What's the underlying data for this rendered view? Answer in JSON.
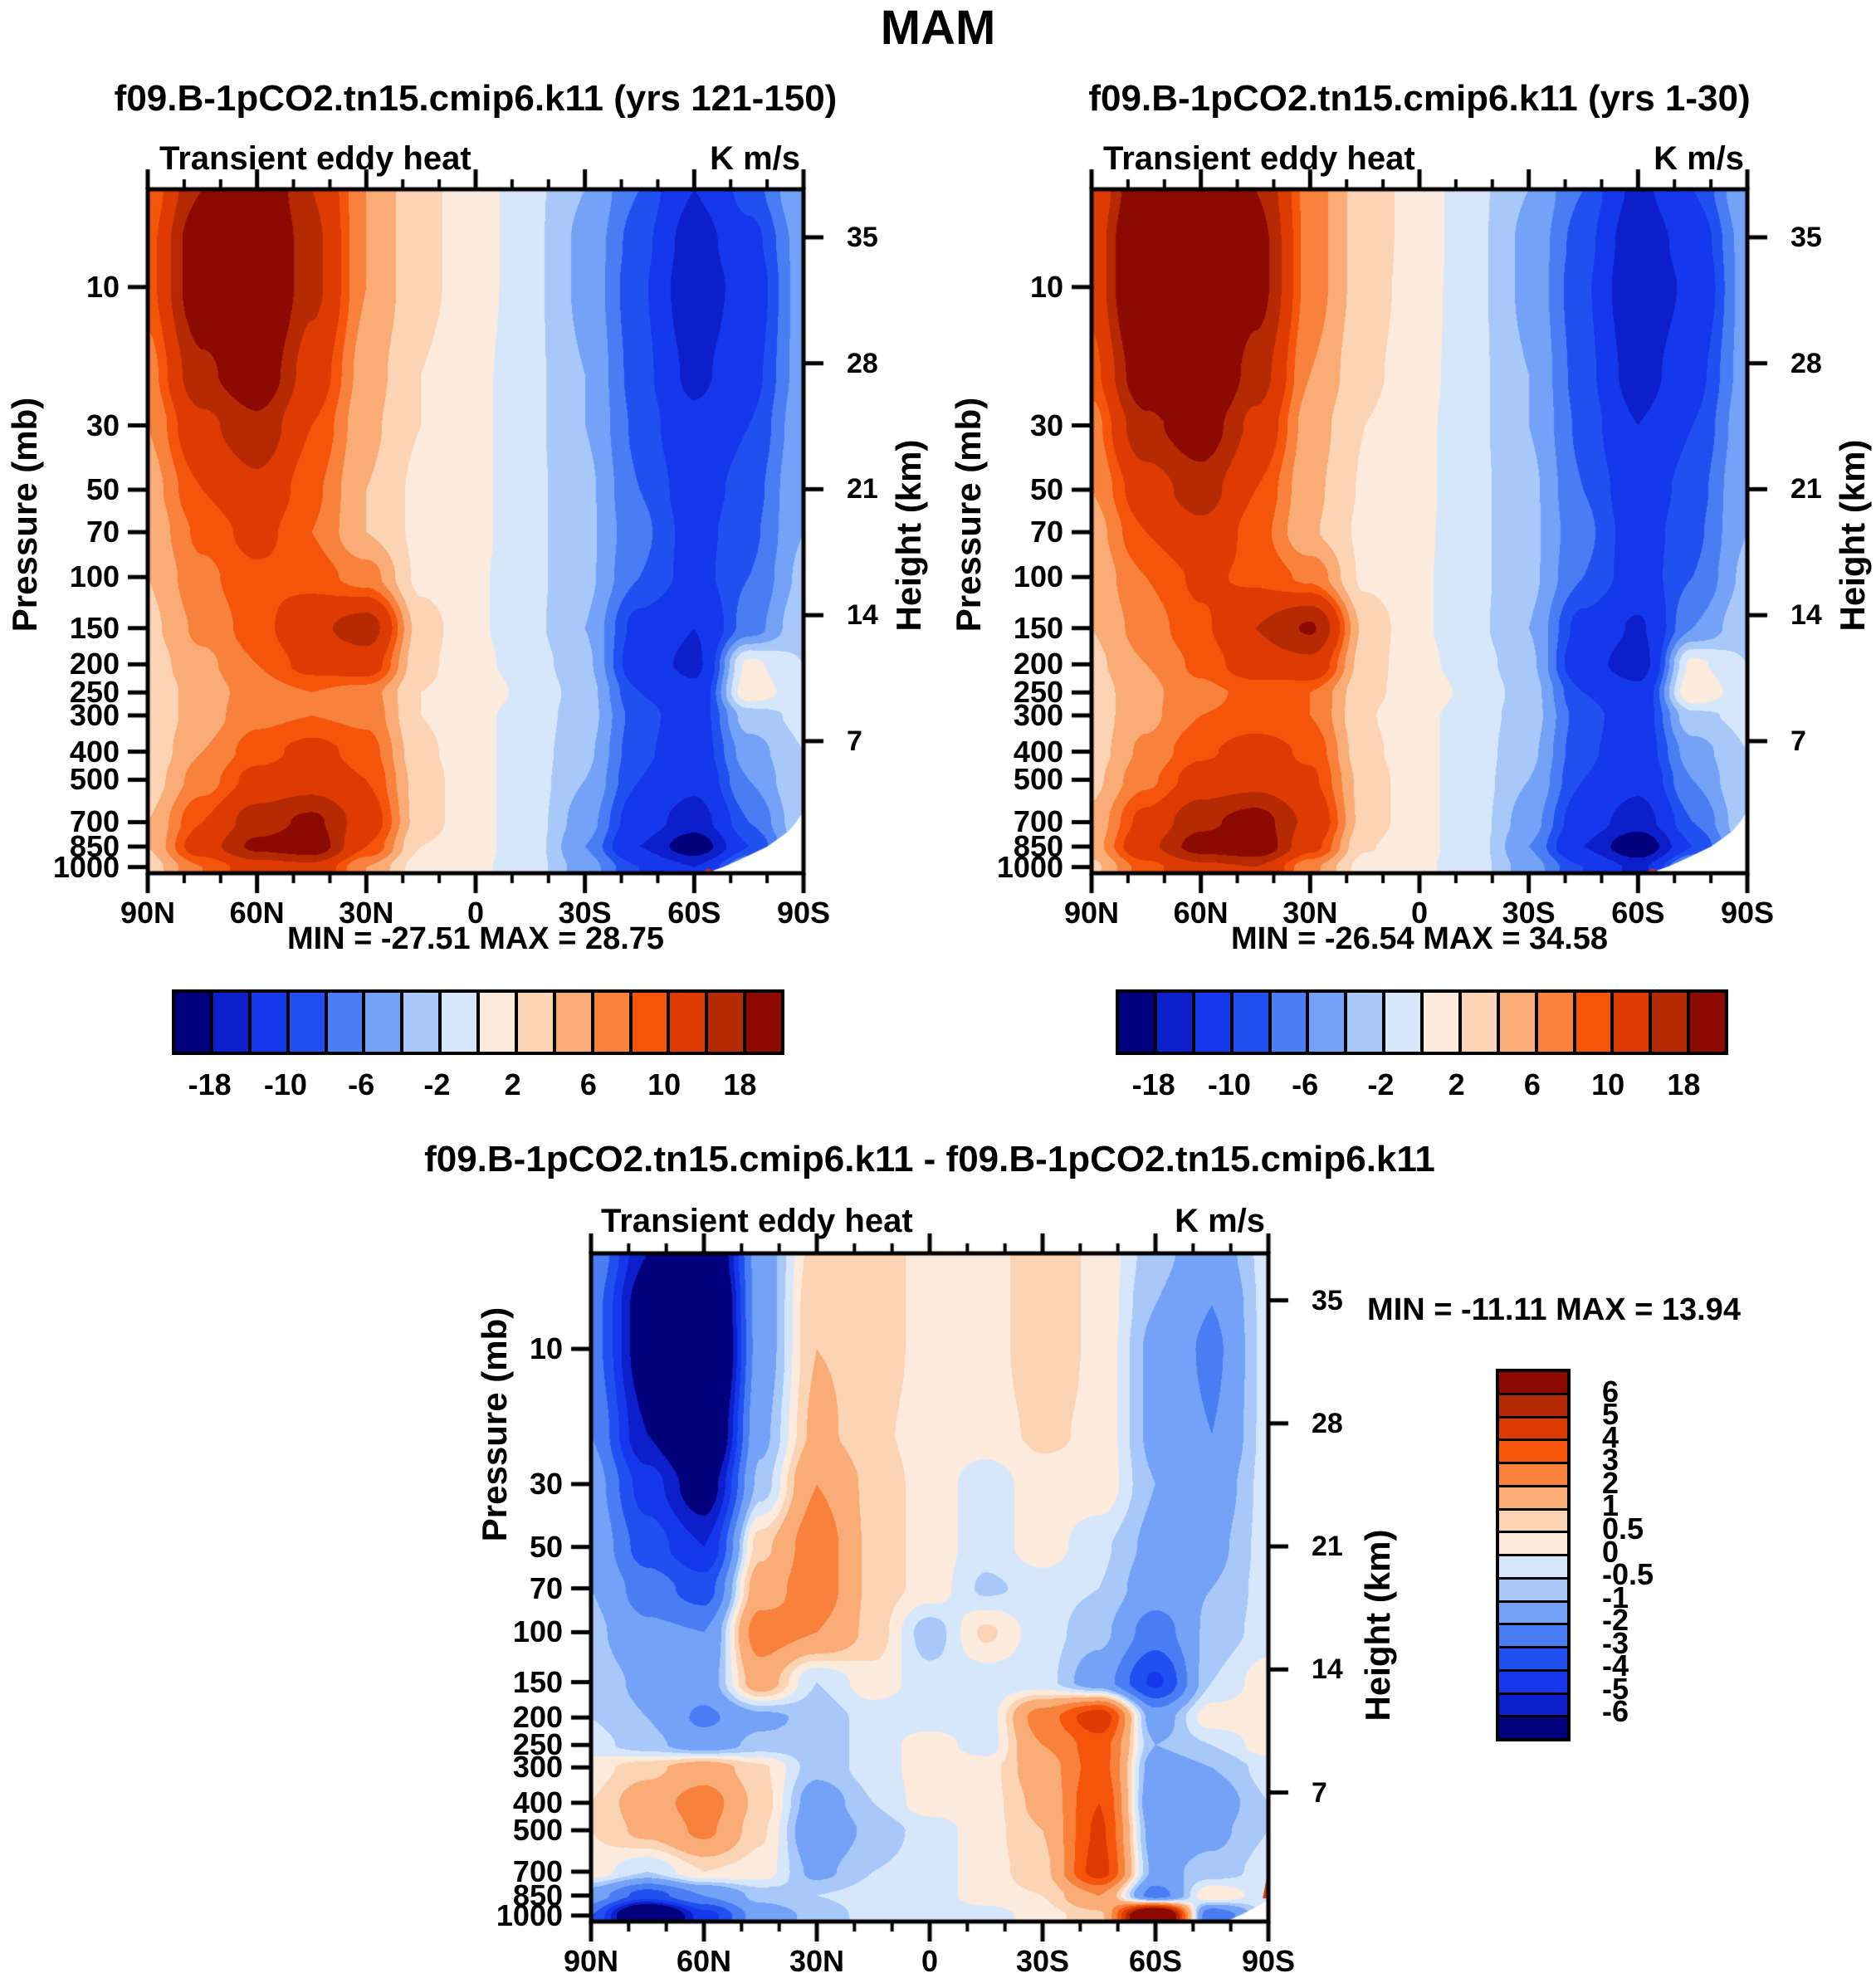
{
  "main_title": "MAM",
  "palette": [
    "#02007c",
    "#0d1fca",
    "#1638ed",
    "#2050f0",
    "#4a7df4",
    "#74a2f6",
    "#a8c8fa",
    "#d7e7fb",
    "#fceadd",
    "#fbd3b5",
    "#f9ac76",
    "#f8813c",
    "#f4550b",
    "#dd3b02",
    "#b52a03",
    "#8d0a03"
  ],
  "chart_data": [
    {
      "type": "heatmap",
      "title": "f09.B-1pCO2.tn15.cmip6.k11 (yrs 121-150)",
      "field": "Transient eddy heat",
      "units": "K m/s",
      "stats": "MIN = -27.51  MAX =  28.75",
      "ylabel_left": "Pressure (mb)",
      "ylabel_right": "Height (km)",
      "x_ticks": [
        {
          "lat": 90,
          "label": "90N"
        },
        {
          "lat": 60,
          "label": "60N"
        },
        {
          "lat": 30,
          "label": "30N"
        },
        {
          "lat": 0,
          "label": "0"
        },
        {
          "lat": -30,
          "label": "30S"
        },
        {
          "lat": -60,
          "label": "60S"
        },
        {
          "lat": -90,
          "label": "90S"
        }
      ],
      "pressure_ticks": [
        10,
        30,
        50,
        70,
        100,
        150,
        200,
        250,
        300,
        400,
        500,
        700,
        850,
        1000
      ],
      "height_ticks": [
        35,
        28,
        21,
        14,
        7
      ],
      "levels": [
        -18,
        -14,
        -10,
        -8,
        -6,
        -4,
        -2,
        0,
        2,
        4,
        6,
        8,
        10,
        14,
        18
      ],
      "colorbar_labels": [
        "-18",
        "-10",
        "-6",
        "-2",
        "2",
        "6",
        "10",
        "18"
      ],
      "lat": [
        90,
        75,
        60,
        45,
        30,
        15,
        0,
        -15,
        -30,
        -45,
        -60,
        -75,
        -90
      ],
      "pressure": [
        4.6,
        7,
        10,
        20,
        30,
        50,
        70,
        100,
        150,
        200,
        250,
        300,
        400,
        500,
        700,
        850,
        1000
      ],
      "values": [
        [
          8,
          18,
          24,
          14,
          6,
          2.5,
          1,
          -1.5,
          -4,
          -8,
          -14,
          -9,
          -4
        ],
        [
          9,
          22,
          27,
          15,
          6,
          2.5,
          1,
          -1.5,
          -4.5,
          -9,
          -16,
          -11,
          -5
        ],
        [
          9,
          22,
          27,
          15,
          6,
          2.5,
          1,
          -1.5,
          -4.5,
          -9.5,
          -17,
          -12,
          -5
        ],
        [
          7,
          17,
          22,
          12,
          5,
          2,
          0.5,
          -1.5,
          -4,
          -9,
          -15,
          -11,
          -5
        ],
        [
          6,
          13,
          17,
          10,
          4.5,
          2,
          0.5,
          -1.5,
          -4,
          -8.5,
          -13,
          -10,
          -4.5
        ],
        [
          5,
          10,
          13,
          8.5,
          4,
          1.5,
          0.5,
          -1.5,
          -3.5,
          -8,
          -11.5,
          -9,
          -4
        ],
        [
          4.5,
          8.5,
          11,
          8,
          4,
          1.5,
          0.5,
          -1.5,
          -3.5,
          -7.5,
          -11,
          -8.5,
          -4
        ],
        [
          4,
          7.5,
          9.5,
          9,
          7,
          1.5,
          0.3,
          -1.5,
          -3.5,
          -8,
          -11,
          -8,
          -3.5
        ],
        [
          3.5,
          6.5,
          9,
          13,
          16,
          3,
          0.3,
          -1.5,
          -4,
          -11,
          -14,
          -7,
          -2.5
        ],
        [
          3,
          5.5,
          8,
          11,
          12,
          2.5,
          0.5,
          -1,
          -3.5,
          -12,
          -15,
          0.5,
          -2
        ],
        [
          2.5,
          5,
          7,
          8,
          7,
          2,
          1,
          -0.5,
          -3,
          -10,
          -13,
          1.5,
          -1.5
        ],
        [
          2.5,
          5,
          7.5,
          8,
          7.5,
          2,
          0.5,
          -1,
          -3,
          -9,
          -12,
          -3,
          -1.5
        ],
        [
          2.5,
          6,
          9,
          11,
          9,
          2.5,
          0.5,
          -1,
          -3.5,
          -9.5,
          -12,
          -5,
          -2
        ],
        [
          3,
          7,
          11,
          12,
          10,
          3,
          0.5,
          -1,
          -4,
          -10,
          -13,
          -6,
          -2
        ],
        [
          4,
          10,
          16,
          19,
          12,
          3,
          0.5,
          -1,
          -5,
          -12,
          -16,
          -8,
          -2.5
        ],
        [
          4,
          12,
          19,
          21,
          10,
          2,
          0.5,
          -1,
          -6,
          -14,
          -21,
          -10,
          -3
        ],
        [
          3,
          8,
          12,
          13,
          6,
          1,
          0.3,
          -1,
          -5,
          -10,
          -14,
          -5,
          -2
        ]
      ],
      "masks": [
        {
          "color": "#ffffff",
          "pts": [
            [
              -62,
              1060
            ],
            [
              -68,
              1000
            ],
            [
              -72,
              950
            ],
            [
              -76,
              900
            ],
            [
              -80,
              850
            ],
            [
              -83,
              800
            ],
            [
              -86,
              750
            ],
            [
              -88,
              700
            ],
            [
              -90,
              640
            ],
            [
              -90,
              1060
            ]
          ]
        },
        {
          "color": "#dd3b02",
          "pts": [
            [
              -60.5,
              1060
            ],
            [
              -64,
              1012
            ],
            [
              -67,
              1060
            ]
          ]
        }
      ]
    },
    {
      "type": "heatmap",
      "title": "f09.B-1pCO2.tn15.cmip6.k11 (yrs 1-30)",
      "field": "Transient eddy heat",
      "units": "K m/s",
      "stats": "MIN = -26.54  MAX =  34.58",
      "ylabel_left": "Pressure (mb)",
      "ylabel_right": "Height (km)",
      "x_ticks": [
        {
          "lat": 90,
          "label": "90N"
        },
        {
          "lat": 60,
          "label": "60N"
        },
        {
          "lat": 30,
          "label": "30N"
        },
        {
          "lat": 0,
          "label": "0"
        },
        {
          "lat": -30,
          "label": "30S"
        },
        {
          "lat": -60,
          "label": "60S"
        },
        {
          "lat": -90,
          "label": "90S"
        }
      ],
      "pressure_ticks": [
        10,
        30,
        50,
        70,
        100,
        150,
        200,
        250,
        300,
        400,
        500,
        700,
        850,
        1000
      ],
      "height_ticks": [
        35,
        28,
        21,
        14,
        7
      ],
      "levels": [
        -18,
        -14,
        -10,
        -8,
        -6,
        -4,
        -2,
        0,
        2,
        4,
        6,
        8,
        10,
        14,
        18
      ],
      "colorbar_labels": [
        "-18",
        "-10",
        "-6",
        "-2",
        "2",
        "6",
        "10",
        "18"
      ],
      "lat": [
        90,
        75,
        60,
        45,
        30,
        15,
        0,
        -15,
        -30,
        -45,
        -60,
        -75,
        -90
      ],
      "pressure": [
        4.6,
        7,
        10,
        20,
        30,
        50,
        70,
        100,
        150,
        200,
        250,
        300,
        400,
        500,
        700,
        850,
        1000
      ],
      "values": [
        [
          10,
          24,
          29,
          18,
          7,
          3,
          1.2,
          -1.5,
          -4,
          -8,
          -15,
          -10,
          -4
        ],
        [
          11,
          28,
          33,
          20,
          7,
          3,
          1.2,
          -1.5,
          -4.5,
          -9,
          -17,
          -12,
          -5
        ],
        [
          11,
          28,
          33,
          20,
          7,
          3,
          1,
          -1.5,
          -4.5,
          -9.5,
          -18,
          -13,
          -5
        ],
        [
          9,
          22,
          27,
          16,
          6,
          2.5,
          0.8,
          -1.5,
          -4,
          -9,
          -16,
          -11,
          -5
        ],
        [
          7,
          17,
          21,
          13,
          5,
          2,
          0.5,
          -1.5,
          -4,
          -8.5,
          -14,
          -10,
          -4.5
        ],
        [
          6,
          12,
          16,
          10,
          4.5,
          1.8,
          0.5,
          -1.5,
          -3.5,
          -8,
          -12,
          -9,
          -4
        ],
        [
          5,
          10,
          13,
          9,
          4.2,
          1.6,
          0.4,
          -1.5,
          -3.5,
          -7.5,
          -11.5,
          -8.5,
          -4
        ],
        [
          4.5,
          8,
          10.5,
          9.5,
          7.5,
          1.6,
          0.3,
          -1.5,
          -3.5,
          -8,
          -11.5,
          -8,
          -3.5
        ],
        [
          4,
          7,
          9.5,
          14,
          18.5,
          3.5,
          0.3,
          -1.5,
          -4,
          -11,
          -14.5,
          -6,
          -2.5
        ],
        [
          3.5,
          6,
          8.5,
          12,
          13,
          3,
          0.5,
          -1,
          -3.5,
          -12.5,
          -16,
          0.5,
          -2
        ],
        [
          3,
          5.5,
          7.5,
          8.5,
          8,
          2.5,
          1,
          -0.5,
          -3,
          -10,
          -13,
          2,
          -1.5
        ],
        [
          3,
          5.5,
          8,
          8.5,
          8,
          2.2,
          0.5,
          -1,
          -3,
          -9,
          -12,
          -2.5,
          -1.5
        ],
        [
          3,
          6.5,
          9.5,
          11.5,
          9.5,
          2.6,
          0.5,
          -1,
          -3.5,
          -9.5,
          -12,
          -5,
          -2
        ],
        [
          3.5,
          7.5,
          11.5,
          12.5,
          10.5,
          3.2,
          0.5,
          -1,
          -4,
          -10,
          -13,
          -6,
          -2
        ],
        [
          4.5,
          11,
          17,
          20,
          13,
          3.2,
          0.5,
          -1,
          -5,
          -12,
          -16,
          -8,
          -2.5
        ],
        [
          5,
          13,
          20,
          22,
          11,
          2.2,
          0.5,
          -1,
          -6,
          -14,
          -22,
          -10,
          -3
        ],
        [
          3.5,
          9,
          13,
          14,
          6.5,
          1.2,
          0.3,
          -1,
          -5,
          -10,
          -15,
          -4,
          -2
        ]
      ],
      "masks": [
        {
          "color": "#ffffff",
          "pts": [
            [
              -62,
              1060
            ],
            [
              -68,
              1000
            ],
            [
              -72,
              950
            ],
            [
              -76,
              900
            ],
            [
              -80,
              850
            ],
            [
              -83,
              800
            ],
            [
              -86,
              750
            ],
            [
              -88,
              700
            ],
            [
              -90,
              640
            ],
            [
              -90,
              1060
            ]
          ]
        },
        {
          "color": "#dd3b02",
          "pts": [
            [
              -60.5,
              1060
            ],
            [
              -64,
              1012
            ],
            [
              -67,
              1060
            ]
          ]
        }
      ]
    },
    {
      "type": "heatmap",
      "title": "f09.B-1pCO2.tn15.cmip6.k11 - f09.B-1pCO2.tn15.cmip6.k11",
      "field": "Transient eddy heat",
      "units": "K m/s",
      "stats": "MIN = -11.11  MAX =  13.94",
      "ylabel_left": "Pressure (mb)",
      "ylabel_right": "Height (km)",
      "x_ticks": [
        {
          "lat": 90,
          "label": "90N"
        },
        {
          "lat": 60,
          "label": "60N"
        },
        {
          "lat": 30,
          "label": "30N"
        },
        {
          "lat": 0,
          "label": "0"
        },
        {
          "lat": -30,
          "label": "30S"
        },
        {
          "lat": -60,
          "label": "60S"
        },
        {
          "lat": -90,
          "label": "90S"
        }
      ],
      "pressure_ticks": [
        10,
        30,
        50,
        70,
        100,
        150,
        200,
        250,
        300,
        400,
        500,
        700,
        850,
        1000
      ],
      "height_ticks": [
        35,
        28,
        21,
        14,
        7
      ],
      "levels": [
        -6,
        -5,
        -4,
        -3,
        -2,
        -1,
        -0.5,
        0,
        0.5,
        1,
        2,
        3,
        4,
        5,
        6
      ],
      "colorbar_labels": [
        "6",
        "5",
        "4",
        "3",
        "2",
        "1",
        "0.5",
        "0",
        "-0.5",
        "-1",
        "-2",
        "-3",
        "-4",
        "-5",
        "-6"
      ],
      "lat": [
        90,
        75,
        60,
        45,
        30,
        15,
        0,
        -15,
        -30,
        -45,
        -60,
        -75,
        -90
      ],
      "pressure": [
        4.6,
        7,
        10,
        20,
        30,
        50,
        70,
        100,
        150,
        200,
        250,
        300,
        400,
        500,
        700,
        850,
        1000
      ],
      "values": [
        [
          -2,
          -6,
          -9,
          -1.5,
          0.8,
          0.8,
          0.3,
          0.3,
          0.8,
          0.4,
          -0.8,
          -1.5,
          -0.3
        ],
        [
          -2.5,
          -7,
          -10.5,
          -1.5,
          1,
          0.8,
          0.3,
          0.3,
          0.8,
          0.4,
          -1,
          -2,
          -0.3
        ],
        [
          -2.5,
          -7,
          -11,
          -1.5,
          1,
          0.8,
          0.3,
          0.3,
          0.8,
          0.4,
          -1.2,
          -2.2,
          -0.3
        ],
        [
          -2,
          -6,
          -9,
          -1.2,
          1.2,
          0.6,
          0.3,
          0.3,
          0.6,
          0.4,
          -1.2,
          -2,
          -0.3
        ],
        [
          -1.5,
          -4.5,
          -7,
          -0.8,
          2,
          0.8,
          0.3,
          -0.3,
          0.3,
          0.4,
          -1,
          -1.5,
          -0.3
        ],
        [
          -1.2,
          -3.5,
          -5,
          0.8,
          2.6,
          0.8,
          0.3,
          -0.3,
          0.3,
          -0.4,
          -1.2,
          -1.2,
          -0.3
        ],
        [
          -1,
          -2.5,
          -3.5,
          1.5,
          2.6,
          0.8,
          0.3,
          -0.6,
          -0.3,
          -0.5,
          -1.5,
          -1,
          -0.3
        ],
        [
          -0.8,
          -1.8,
          -2,
          2.5,
          2,
          0.8,
          -0.8,
          0.6,
          -0.3,
          -0.8,
          -2.5,
          -0.8,
          -0.3
        ],
        [
          -0.6,
          -1.2,
          -1.5,
          1.5,
          -0.5,
          0.3,
          -0.3,
          -0.3,
          -0.3,
          -1.5,
          -4.2,
          -0.5,
          0.3
        ],
        [
          -0.5,
          -1,
          -2.2,
          -1.2,
          -0.8,
          -0.3,
          -0.3,
          -0.3,
          2.5,
          4.8,
          -1.5,
          0.3,
          0.3
        ],
        [
          -0.3,
          -0.8,
          -1.5,
          -0.8,
          -0.8,
          -0.3,
          0.3,
          -0.3,
          2,
          3.5,
          -1,
          -0.5,
          0.3
        ],
        [
          0.3,
          0.8,
          1.5,
          0.6,
          -0.8,
          -0.3,
          0.3,
          0.3,
          1.5,
          3.5,
          -1.5,
          -1,
          -0.3
        ],
        [
          0.5,
          1.5,
          2.5,
          0.8,
          -1.5,
          -0.5,
          0.3,
          0.3,
          1.2,
          4,
          -1.8,
          -1.5,
          -0.5
        ],
        [
          0.5,
          1.2,
          2.2,
          0.6,
          -1.8,
          -0.8,
          -0.3,
          0.3,
          1,
          4.2,
          -1.5,
          -1.2,
          -0.5
        ],
        [
          0.3,
          -0.5,
          0.5,
          0.3,
          -1.2,
          -0.5,
          -0.3,
          0.3,
          0.8,
          4.5,
          -1.2,
          -0.8,
          -0.3
        ],
        [
          -1.5,
          -3.5,
          -2,
          -0.8,
          -0.5,
          -0.3,
          -0.3,
          0.3,
          0.5,
          2,
          -2.5,
          0.5,
          -0.3
        ],
        [
          -3,
          -10,
          -4.5,
          -1.5,
          -0.8,
          -0.3,
          -0.3,
          -0.3,
          0.3,
          0.8,
          10,
          -3,
          -0.3
        ]
      ],
      "masks": [
        {
          "color": "#ffffff",
          "pts": [
            [
              -78,
              1060
            ],
            [
              -83,
              990
            ],
            [
              -87,
              930
            ],
            [
              -90,
              880
            ],
            [
              -90,
              1060
            ]
          ]
        },
        {
          "color": "#dd3b02",
          "pts": [
            [
              -88.5,
              870
            ],
            [
              -90,
              690
            ],
            [
              -90,
              870
            ]
          ]
        }
      ]
    }
  ]
}
